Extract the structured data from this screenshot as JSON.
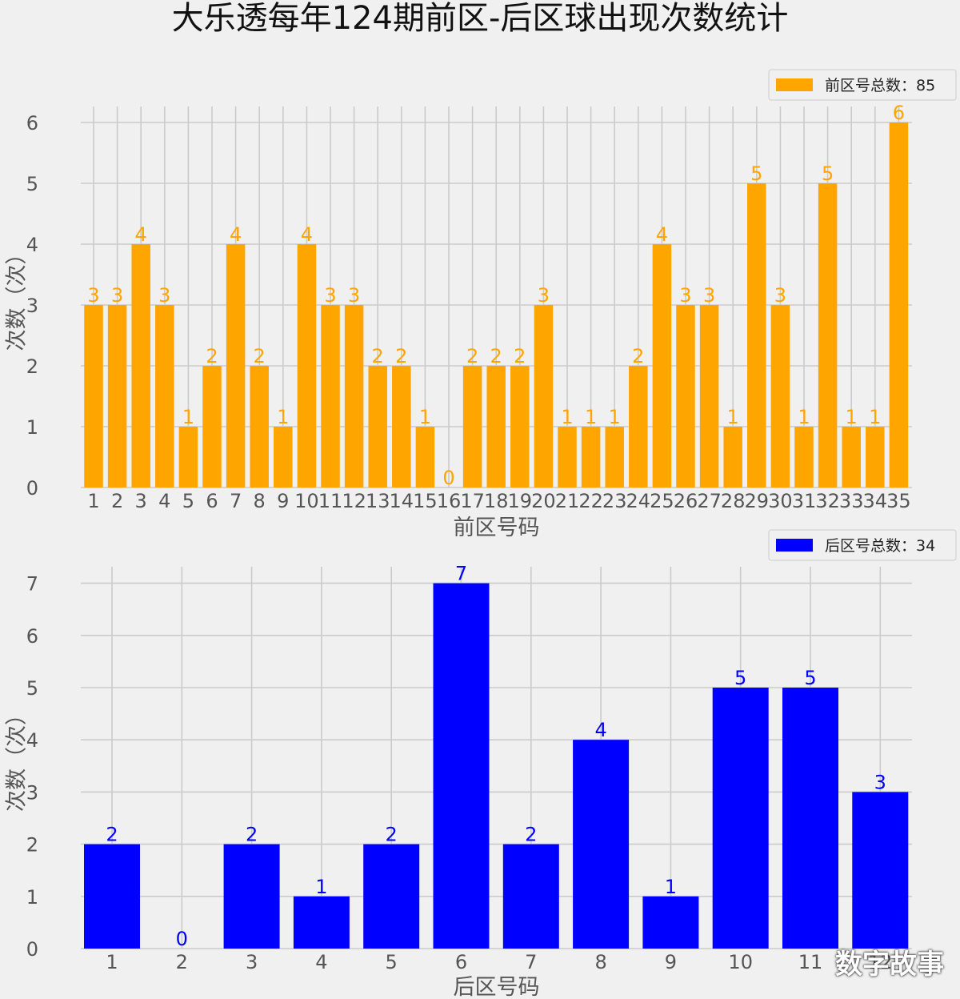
{
  "title": "大乐透每年124期前区-后区球出现次数统计",
  "watermark": "数字故事",
  "chart_data": [
    {
      "type": "bar",
      "categories": [
        "1",
        "2",
        "3",
        "4",
        "5",
        "6",
        "7",
        "8",
        "9",
        "10",
        "11",
        "12",
        "13",
        "14",
        "15",
        "16",
        "17",
        "18",
        "19",
        "20",
        "21",
        "22",
        "23",
        "24",
        "25",
        "26",
        "27",
        "28",
        "29",
        "30",
        "31",
        "32",
        "33",
        "34",
        "35"
      ],
      "values": [
        3,
        3,
        4,
        3,
        1,
        2,
        4,
        2,
        1,
        4,
        3,
        3,
        2,
        2,
        1,
        0,
        2,
        2,
        2,
        3,
        1,
        1,
        1,
        2,
        4,
        3,
        3,
        1,
        5,
        3,
        1,
        5,
        1,
        1,
        6
      ],
      "series": [
        {
          "name": "前区号总数：85",
          "color": "#FFA500"
        }
      ],
      "xlabel": "前区号码",
      "ylabel": "次数（次）",
      "yticks": [
        0,
        1,
        2,
        3,
        4,
        5,
        6
      ],
      "ylim": [
        0,
        6.3
      ],
      "grid": true,
      "legend": "top-right"
    },
    {
      "type": "bar",
      "categories": [
        "1",
        "2",
        "3",
        "4",
        "5",
        "6",
        "7",
        "8",
        "9",
        "10",
        "11",
        "12"
      ],
      "values": [
        2,
        0,
        2,
        1,
        2,
        7,
        2,
        4,
        1,
        5,
        5,
        3
      ],
      "series": [
        {
          "name": "后区号总数：34",
          "color": "#0000FF"
        }
      ],
      "xlabel": "后区号码",
      "ylabel": "次数（次）",
      "yticks": [
        0,
        1,
        2,
        3,
        4,
        5,
        6,
        7
      ],
      "ylim": [
        0,
        7.35
      ],
      "grid": true,
      "legend": "top-right"
    }
  ]
}
